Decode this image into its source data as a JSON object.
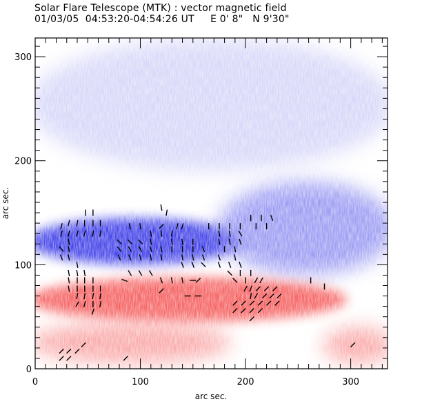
{
  "chart_data": {
    "type": "vector-magnetogram",
    "title": "Solar Flare Telescope (MTK) : vector magnetic field",
    "subtitle": "01/03/05  04:53:20-04:54:26 UT     E 0' 8\"   N 9'30\"",
    "xlabel": "arc sec.",
    "ylabel": "arc sec.",
    "xlim": [
      0,
      335
    ],
    "ylim": [
      0,
      318
    ],
    "x_ticks": [
      0,
      100,
      200,
      300
    ],
    "y_ticks": [
      0,
      100,
      200,
      300
    ],
    "x_tick_labels": [
      "0",
      "100",
      "200",
      "300"
    ],
    "y_tick_labels": [
      "0",
      "100",
      "200",
      "300"
    ],
    "minor_tick_step": 10,
    "colors": {
      "negative_polarity": "#3a3ae8",
      "negative_weak": "#b8b8f5",
      "positive_polarity": "#f55a5a",
      "positive_weak": "#fbb8b8",
      "vectors": "#000000"
    },
    "regions": [
      {
        "polarity": "negative",
        "strength": "strong",
        "x": [
          0,
          190
        ],
        "y": [
          100,
          145
        ]
      },
      {
        "polarity": "negative",
        "strength": "moderate",
        "x": [
          180,
          335
        ],
        "y": [
          90,
          180
        ]
      },
      {
        "polarity": "negative",
        "strength": "weak",
        "x": [
          0,
          335
        ],
        "y": [
          190,
          318
        ]
      },
      {
        "polarity": "positive",
        "strength": "strong",
        "x": [
          0,
          290
        ],
        "y": [
          45,
          88
        ]
      },
      {
        "polarity": "positive",
        "strength": "moderate",
        "x": [
          0,
          180
        ],
        "y": [
          5,
          45
        ]
      },
      {
        "polarity": "positive",
        "strength": "moderate",
        "x": [
          280,
          335
        ],
        "y": [
          5,
          40
        ]
      }
    ],
    "vectors": [
      {
        "x": 48,
        "y": 150,
        "angle": 90
      },
      {
        "x": 55,
        "y": 150,
        "angle": 90
      },
      {
        "x": 25,
        "y": 137,
        "angle": 75
      },
      {
        "x": 32,
        "y": 140,
        "angle": 75
      },
      {
        "x": 40,
        "y": 140,
        "angle": 80
      },
      {
        "x": 47,
        "y": 140,
        "angle": 90
      },
      {
        "x": 55,
        "y": 140,
        "angle": 90
      },
      {
        "x": 62,
        "y": 140,
        "angle": 90
      },
      {
        "x": 25,
        "y": 130,
        "angle": 75
      },
      {
        "x": 32,
        "y": 130,
        "angle": 75
      },
      {
        "x": 40,
        "y": 130,
        "angle": 75
      },
      {
        "x": 47,
        "y": 130,
        "angle": 75
      },
      {
        "x": 55,
        "y": 130,
        "angle": 80
      },
      {
        "x": 62,
        "y": 130,
        "angle": 80
      },
      {
        "x": 32,
        "y": 122,
        "angle": 100
      },
      {
        "x": 25,
        "y": 115,
        "angle": 130
      },
      {
        "x": 32,
        "y": 115,
        "angle": 100
      },
      {
        "x": 25,
        "y": 107,
        "angle": 110
      },
      {
        "x": 32,
        "y": 107,
        "angle": 100
      },
      {
        "x": 40,
        "y": 100,
        "angle": 100
      },
      {
        "x": 32,
        "y": 92,
        "angle": 100
      },
      {
        "x": 40,
        "y": 92,
        "angle": 100
      },
      {
        "x": 47,
        "y": 92,
        "angle": 100
      },
      {
        "x": 32,
        "y": 85,
        "angle": 100
      },
      {
        "x": 40,
        "y": 85,
        "angle": 90
      },
      {
        "x": 47,
        "y": 85,
        "angle": 90
      },
      {
        "x": 55,
        "y": 85,
        "angle": 90
      },
      {
        "x": 32,
        "y": 77,
        "angle": 100
      },
      {
        "x": 40,
        "y": 77,
        "angle": 90
      },
      {
        "x": 47,
        "y": 77,
        "angle": 90
      },
      {
        "x": 55,
        "y": 77,
        "angle": 90
      },
      {
        "x": 62,
        "y": 77,
        "angle": 90
      },
      {
        "x": 40,
        "y": 70,
        "angle": 80
      },
      {
        "x": 47,
        "y": 70,
        "angle": 80
      },
      {
        "x": 55,
        "y": 70,
        "angle": 80
      },
      {
        "x": 62,
        "y": 70,
        "angle": 80
      },
      {
        "x": 40,
        "y": 62,
        "angle": 60
      },
      {
        "x": 47,
        "y": 62,
        "angle": 75
      },
      {
        "x": 55,
        "y": 62,
        "angle": 90
      },
      {
        "x": 62,
        "y": 62,
        "angle": 80
      },
      {
        "x": 55,
        "y": 55,
        "angle": 70
      },
      {
        "x": 80,
        "y": 122,
        "angle": 135
      },
      {
        "x": 90,
        "y": 122,
        "angle": 135
      },
      {
        "x": 100,
        "y": 122,
        "angle": 135
      },
      {
        "x": 110,
        "y": 122,
        "angle": 100
      },
      {
        "x": 80,
        "y": 115,
        "angle": 130
      },
      {
        "x": 90,
        "y": 115,
        "angle": 120
      },
      {
        "x": 100,
        "y": 115,
        "angle": 115
      },
      {
        "x": 110,
        "y": 115,
        "angle": 110
      },
      {
        "x": 120,
        "y": 115,
        "angle": 100
      },
      {
        "x": 80,
        "y": 107,
        "angle": 110
      },
      {
        "x": 90,
        "y": 107,
        "angle": 110
      },
      {
        "x": 100,
        "y": 107,
        "angle": 105
      },
      {
        "x": 110,
        "y": 107,
        "angle": 100
      },
      {
        "x": 120,
        "y": 107,
        "angle": 100
      },
      {
        "x": 90,
        "y": 137,
        "angle": 100
      },
      {
        "x": 100,
        "y": 137,
        "angle": 100
      },
      {
        "x": 110,
        "y": 130,
        "angle": 100
      },
      {
        "x": 120,
        "y": 130,
        "angle": 100
      },
      {
        "x": 130,
        "y": 130,
        "angle": 80
      },
      {
        "x": 125,
        "y": 150,
        "angle": 80
      },
      {
        "x": 120,
        "y": 137,
        "angle": 45
      },
      {
        "x": 135,
        "y": 137,
        "angle": 75
      },
      {
        "x": 140,
        "y": 137,
        "angle": 75
      },
      {
        "x": 130,
        "y": 122,
        "angle": 100
      },
      {
        "x": 140,
        "y": 122,
        "angle": 100
      },
      {
        "x": 150,
        "y": 122,
        "angle": 90
      },
      {
        "x": 130,
        "y": 115,
        "angle": 90
      },
      {
        "x": 140,
        "y": 115,
        "angle": 90
      },
      {
        "x": 150,
        "y": 115,
        "angle": 90
      },
      {
        "x": 160,
        "y": 115,
        "angle": 110
      },
      {
        "x": 140,
        "y": 107,
        "angle": 100
      },
      {
        "x": 150,
        "y": 107,
        "angle": 100
      },
      {
        "x": 160,
        "y": 107,
        "angle": 110
      },
      {
        "x": 140,
        "y": 100,
        "angle": 110
      },
      {
        "x": 150,
        "y": 100,
        "angle": 110
      },
      {
        "x": 160,
        "y": 100,
        "angle": 135
      },
      {
        "x": 90,
        "y": 92,
        "angle": 120
      },
      {
        "x": 100,
        "y": 92,
        "angle": 120
      },
      {
        "x": 110,
        "y": 92,
        "angle": 120
      },
      {
        "x": 120,
        "y": 85,
        "angle": 110
      },
      {
        "x": 130,
        "y": 85,
        "angle": 100
      },
      {
        "x": 140,
        "y": 85,
        "angle": 100
      },
      {
        "x": 165,
        "y": 137,
        "angle": 90
      },
      {
        "x": 175,
        "y": 137,
        "angle": 90
      },
      {
        "x": 185,
        "y": 137,
        "angle": 90
      },
      {
        "x": 195,
        "y": 137,
        "angle": 90
      },
      {
        "x": 175,
        "y": 130,
        "angle": 100
      },
      {
        "x": 185,
        "y": 130,
        "angle": 100
      },
      {
        "x": 195,
        "y": 130,
        "angle": 120
      },
      {
        "x": 175,
        "y": 122,
        "angle": 100
      },
      {
        "x": 185,
        "y": 122,
        "angle": 100
      },
      {
        "x": 195,
        "y": 122,
        "angle": 110
      },
      {
        "x": 180,
        "y": 115,
        "angle": 90
      },
      {
        "x": 190,
        "y": 115,
        "angle": 100
      },
      {
        "x": 175,
        "y": 107,
        "angle": 110
      },
      {
        "x": 190,
        "y": 107,
        "angle": 100
      },
      {
        "x": 175,
        "y": 100,
        "angle": 110
      },
      {
        "x": 185,
        "y": 100,
        "angle": 110
      },
      {
        "x": 195,
        "y": 100,
        "angle": 110
      },
      {
        "x": 185,
        "y": 92,
        "angle": 135
      },
      {
        "x": 195,
        "y": 92,
        "angle": 90
      },
      {
        "x": 205,
        "y": 92,
        "angle": 90
      },
      {
        "x": 205,
        "y": 145,
        "angle": 90
      },
      {
        "x": 215,
        "y": 145,
        "angle": 90
      },
      {
        "x": 225,
        "y": 145,
        "angle": 110
      },
      {
        "x": 210,
        "y": 137,
        "angle": 90
      },
      {
        "x": 220,
        "y": 137,
        "angle": 90
      },
      {
        "x": 120,
        "y": 155,
        "angle": 100
      },
      {
        "x": 85,
        "y": 85,
        "angle": 160
      },
      {
        "x": 120,
        "y": 75,
        "angle": 45
      },
      {
        "x": 155,
        "y": 85,
        "angle": 45
      },
      {
        "x": 150,
        "y": 85,
        "angle": 0
      },
      {
        "x": 145,
        "y": 70,
        "angle": 0
      },
      {
        "x": 155,
        "y": 70,
        "angle": 0
      },
      {
        "x": 190,
        "y": 85,
        "angle": 135
      },
      {
        "x": 200,
        "y": 85,
        "angle": 90
      },
      {
        "x": 210,
        "y": 85,
        "angle": 60
      },
      {
        "x": 215,
        "y": 85,
        "angle": 60
      },
      {
        "x": 200,
        "y": 77,
        "angle": 60
      },
      {
        "x": 205,
        "y": 77,
        "angle": 70
      },
      {
        "x": 212,
        "y": 77,
        "angle": 45
      },
      {
        "x": 220,
        "y": 77,
        "angle": 45
      },
      {
        "x": 228,
        "y": 77,
        "angle": 45
      },
      {
        "x": 205,
        "y": 70,
        "angle": 80
      },
      {
        "x": 210,
        "y": 70,
        "angle": 60
      },
      {
        "x": 218,
        "y": 70,
        "angle": 45
      },
      {
        "x": 225,
        "y": 70,
        "angle": 45
      },
      {
        "x": 232,
        "y": 70,
        "angle": 45
      },
      {
        "x": 190,
        "y": 63,
        "angle": 45
      },
      {
        "x": 198,
        "y": 63,
        "angle": 45
      },
      {
        "x": 206,
        "y": 63,
        "angle": 45
      },
      {
        "x": 214,
        "y": 63,
        "angle": 45
      },
      {
        "x": 222,
        "y": 63,
        "angle": 45
      },
      {
        "x": 230,
        "y": 63,
        "angle": 45
      },
      {
        "x": 190,
        "y": 56,
        "angle": 45
      },
      {
        "x": 198,
        "y": 56,
        "angle": 45
      },
      {
        "x": 206,
        "y": 56,
        "angle": 45
      },
      {
        "x": 214,
        "y": 56,
        "angle": 45
      },
      {
        "x": 206,
        "y": 48,
        "angle": 45
      },
      {
        "x": 262,
        "y": 85,
        "angle": 90
      },
      {
        "x": 275,
        "y": 79,
        "angle": 90
      },
      {
        "x": 25,
        "y": 17,
        "angle": 45
      },
      {
        "x": 32,
        "y": 17,
        "angle": 45
      },
      {
        "x": 40,
        "y": 17,
        "angle": 45
      },
      {
        "x": 46,
        "y": 23,
        "angle": 45
      },
      {
        "x": 25,
        "y": 10,
        "angle": 45
      },
      {
        "x": 32,
        "y": 10,
        "angle": 45
      },
      {
        "x": 86,
        "y": 10,
        "angle": 45
      },
      {
        "x": 302,
        "y": 23,
        "angle": 45
      }
    ]
  }
}
